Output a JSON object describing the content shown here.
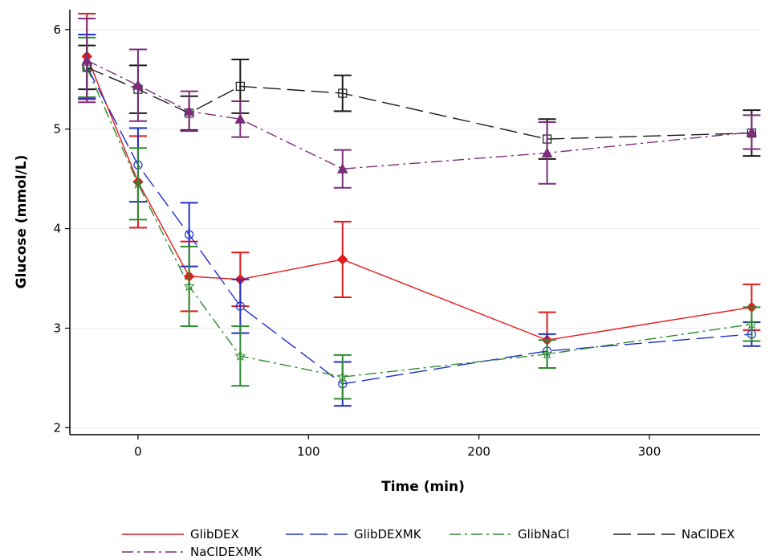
{
  "chart_data": {
    "type": "line",
    "xlabel": "Time (min)",
    "ylabel": "Glucose (mmol/L)",
    "xlim": [
      -40,
      365
    ],
    "ylim": [
      1.93,
      6.2
    ],
    "x_ticks": [
      0,
      100,
      200,
      300
    ],
    "y_ticks": [
      2,
      3,
      4,
      5,
      6
    ],
    "grid": "horizontal",
    "legend_position": "bottom",
    "x": [
      -30,
      0,
      30,
      60,
      120,
      240,
      360
    ],
    "series": [
      {
        "name": "GlibDEX",
        "color": "#e31a1c",
        "dash": "solid",
        "marker": "diamond",
        "values": [
          5.73,
          4.47,
          3.52,
          3.49,
          3.69,
          2.88,
          3.21
        ],
        "error": [
          0.43,
          0.46,
          0.35,
          0.27,
          0.38,
          0.28,
          0.23
        ]
      },
      {
        "name": "GlibDEXMK",
        "color": "#2030c8",
        "dash": "longdash",
        "marker": "circle",
        "values": [
          5.63,
          4.64,
          3.94,
          3.22,
          2.44,
          2.77,
          2.94
        ],
        "error": [
          0.32,
          0.37,
          0.32,
          0.27,
          0.22,
          0.17,
          0.12
        ]
      },
      {
        "name": "GlibNaCl",
        "color": "#2e8b2e",
        "dash": "dashdot",
        "marker": "star",
        "values": [
          5.62,
          4.45,
          3.42,
          2.72,
          2.51,
          2.74,
          3.04
        ],
        "error": [
          0.3,
          0.36,
          0.4,
          0.3,
          0.22,
          0.14,
          0.17
        ]
      },
      {
        "name": "NaClDEX",
        "color": "#1a1a1a",
        "dash": "longdash",
        "marker": "square",
        "values": [
          5.62,
          5.4,
          5.16,
          5.43,
          5.36,
          4.9,
          4.96
        ],
        "error": [
          0.22,
          0.24,
          0.17,
          0.27,
          0.18,
          0.2,
          0.23
        ]
      },
      {
        "name": "NaClDEXMK",
        "color": "#7b2d7b",
        "dash": "dashdot",
        "marker": "triangle",
        "values": [
          5.69,
          5.44,
          5.18,
          5.1,
          4.6,
          4.76,
          4.97
        ],
        "error": [
          0.42,
          0.36,
          0.2,
          0.18,
          0.19,
          0.31,
          0.17
        ]
      }
    ]
  }
}
